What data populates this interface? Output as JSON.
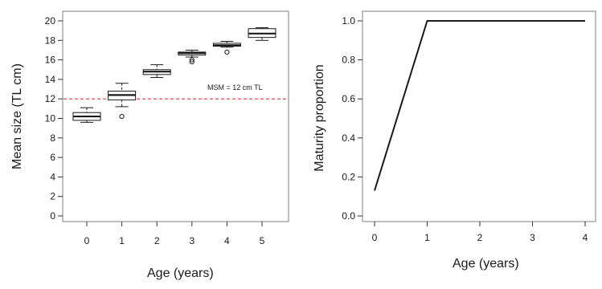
{
  "chart_data": [
    {
      "type": "box",
      "title": "",
      "xlabel": "Age (years)",
      "ylabel": "Mean size (TL cm)",
      "categories": [
        "0",
        "1",
        "2",
        "3",
        "4",
        "5"
      ],
      "xticks": [
        "0",
        "1",
        "2",
        "3",
        "4",
        "5"
      ],
      "yticks": [
        "0",
        "2",
        "4",
        "6",
        "8",
        "10",
        "12",
        "14",
        "16",
        "18",
        "20"
      ],
      "ylim": [
        0,
        20
      ],
      "boxes": [
        {
          "category": "0",
          "min": 9.6,
          "q1": 9.8,
          "median": 10.2,
          "q3": 10.6,
          "max": 11.1,
          "outliers": []
        },
        {
          "category": "1",
          "min": 11.2,
          "q1": 11.9,
          "median": 12.4,
          "q3": 12.8,
          "max": 13.6,
          "outliers": [
            10.2
          ]
        },
        {
          "category": "2",
          "min": 14.2,
          "q1": 14.5,
          "median": 14.8,
          "q3": 15.0,
          "max": 15.5,
          "outliers": []
        },
        {
          "category": "3",
          "min": 16.3,
          "q1": 16.5,
          "median": 16.7,
          "q3": 16.8,
          "max": 17.0,
          "outliers": [
            15.8,
            16.0
          ]
        },
        {
          "category": "4",
          "min": 17.3,
          "q1": 17.4,
          "median": 17.5,
          "q3": 17.7,
          "max": 17.9,
          "outliers": [
            16.8
          ]
        },
        {
          "category": "5",
          "min": 18.0,
          "q1": 18.3,
          "median": 18.7,
          "q3": 19.2,
          "max": 19.3,
          "outliers": []
        }
      ],
      "reference_line": {
        "y": 12,
        "color": "#e8323c",
        "style": "dashed",
        "label": "MSM = 12 cm TL"
      },
      "box_fill": "#ffffff",
      "line_color": "#1a1a1a"
    },
    {
      "type": "line",
      "title": "",
      "xlabel": "Age (years)",
      "ylabel": "Maturity proportion",
      "xticks": [
        "0",
        "1",
        "2",
        "3",
        "4"
      ],
      "yticks": [
        "0.0",
        "0.2",
        "0.4",
        "0.6",
        "0.8",
        "1.0"
      ],
      "xlim": [
        0,
        4
      ],
      "ylim": [
        0,
        1
      ],
      "x": [
        0,
        1,
        2,
        3,
        4
      ],
      "y": [
        0.13,
        1.0,
        1.0,
        1.0,
        1.0
      ],
      "line_color": "#1a1a1a"
    }
  ]
}
